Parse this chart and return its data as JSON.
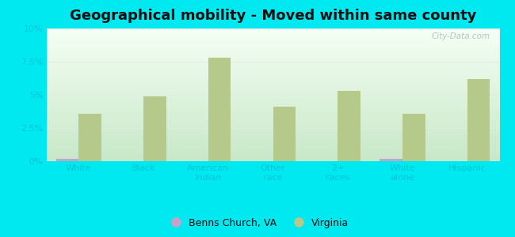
{
  "title": "Geographical mobility - Moved within same county",
  "categories": [
    "White",
    "Black",
    "American\nIndian",
    "Other\nrace",
    "2+\nraces",
    "White\nalone",
    "Hispanic"
  ],
  "benns_church": [
    0.15,
    0.0,
    0.0,
    0.0,
    0.0,
    0.15,
    0.0
  ],
  "virginia": [
    3.6,
    4.9,
    7.8,
    4.1,
    5.3,
    3.6,
    6.2
  ],
  "bar_color_benns": "#c9a0c9",
  "bar_color_virginia": "#b5c98a",
  "bg_outer": "#00e8f0",
  "bg_plot_top": "#f5fff5",
  "bg_plot_bottom": "#c8e8c8",
  "grid_color": "#e0ece0",
  "ylim": [
    0,
    10
  ],
  "yticks": [
    0,
    2.5,
    5.0,
    7.5,
    10.0
  ],
  "ytick_labels": [
    "0%",
    "2.5%",
    "5%",
    "7.5%",
    "10%"
  ],
  "bar_width": 0.35,
  "title_fontsize": 13,
  "tick_color": "#00c8d4",
  "legend_label_benns": "Benns Church, VA",
  "legend_label_virginia": "Virginia",
  "watermark": "City-Data.com"
}
